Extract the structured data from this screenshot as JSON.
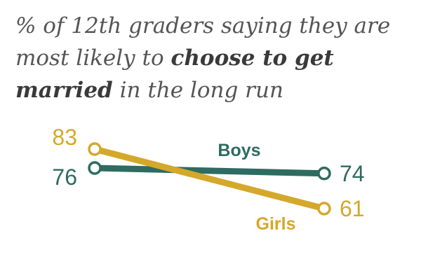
{
  "title": {
    "part1": "% of 12th graders saying they are most likely to ",
    "bold1": "choose to get married",
    "part2": " in the long run"
  },
  "chart_data": {
    "type": "line",
    "categories": [
      "",
      ""
    ],
    "series": [
      {
        "name": "Boys",
        "values": [
          76,
          74
        ],
        "color": "#2e6b60"
      },
      {
        "name": "Girls",
        "values": [
          83,
          61
        ],
        "color": "#d4a82a"
      }
    ],
    "grid": false,
    "legend": "inline labels"
  }
}
